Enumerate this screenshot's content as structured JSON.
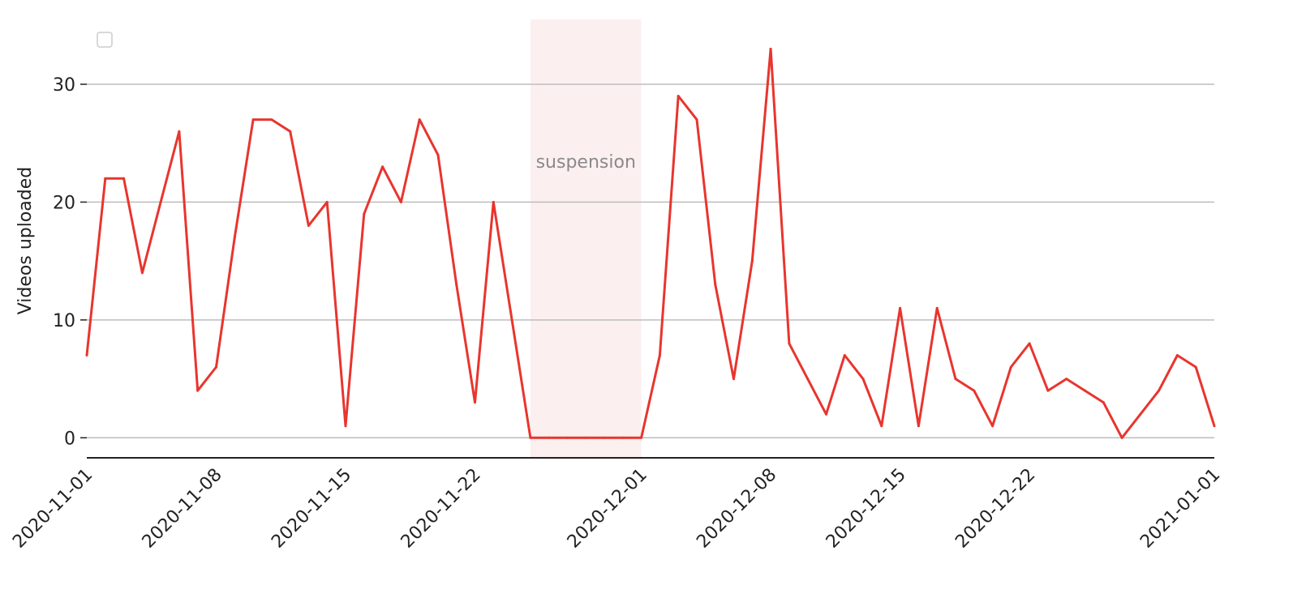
{
  "chart_data": {
    "type": "line",
    "title": "",
    "xlabel": "",
    "ylabel": "Videos uploaded",
    "x_start": "2020-11-01",
    "x_end": "2021-01-01",
    "x_ticks": [
      "2020-11-01",
      "2020-11-08",
      "2020-11-15",
      "2020-11-22",
      "2020-12-01",
      "2020-12-08",
      "2020-12-15",
      "2020-12-22",
      "2021-01-01"
    ],
    "ylim": [
      -1.7,
      35.5
    ],
    "y_ticks": [
      0,
      10,
      20,
      30
    ],
    "grid": "horizontal",
    "legend": "top-left (empty)",
    "line_color": "#e8352e",
    "shade_color": "#fcefef",
    "annotation": {
      "label": "suspension",
      "start": "2020-11-25",
      "end": "2020-12-01"
    },
    "series": [
      {
        "x": [
          "2020-11-01",
          "2020-11-02",
          "2020-11-03",
          "2020-11-04",
          "2020-11-05",
          "2020-11-06",
          "2020-11-07",
          "2020-11-08",
          "2020-11-09",
          "2020-11-10",
          "2020-11-11",
          "2020-11-12",
          "2020-11-13",
          "2020-11-14",
          "2020-11-15",
          "2020-11-16",
          "2020-11-17",
          "2020-11-18",
          "2020-11-19",
          "2020-11-20",
          "2020-11-21",
          "2020-11-22",
          "2020-11-23",
          "2020-11-24",
          "2020-11-25",
          "2020-11-26",
          "2020-11-27",
          "2020-11-28",
          "2020-11-29",
          "2020-11-30",
          "2020-12-01",
          "2020-12-02",
          "2020-12-03",
          "2020-12-04",
          "2020-12-05",
          "2020-12-06",
          "2020-12-07",
          "2020-12-08",
          "2020-12-09",
          "2020-12-10",
          "2020-12-11",
          "2020-12-12",
          "2020-12-13",
          "2020-12-14",
          "2020-12-15",
          "2020-12-16",
          "2020-12-17",
          "2020-12-18",
          "2020-12-19",
          "2020-12-20",
          "2020-12-21",
          "2020-12-22",
          "2020-12-23",
          "2020-12-24",
          "2020-12-25",
          "2020-12-26",
          "2020-12-27",
          "2020-12-28",
          "2020-12-29",
          "2020-12-30",
          "2020-12-31",
          "2021-01-01"
        ],
        "y": [
          7,
          22,
          22,
          14,
          20,
          26,
          4,
          6,
          17,
          27,
          27,
          26,
          18,
          20,
          1,
          19,
          23,
          20,
          27,
          24,
          13,
          3,
          20,
          10,
          0,
          0,
          0,
          0,
          0,
          0,
          0,
          7,
          29,
          27,
          13,
          5,
          15,
          33,
          8,
          5,
          2,
          7,
          5,
          1,
          11,
          1,
          11,
          5,
          4,
          1,
          6,
          8,
          4,
          5,
          4,
          3,
          0,
          2,
          4,
          7,
          6,
          1
        ]
      }
    ]
  }
}
